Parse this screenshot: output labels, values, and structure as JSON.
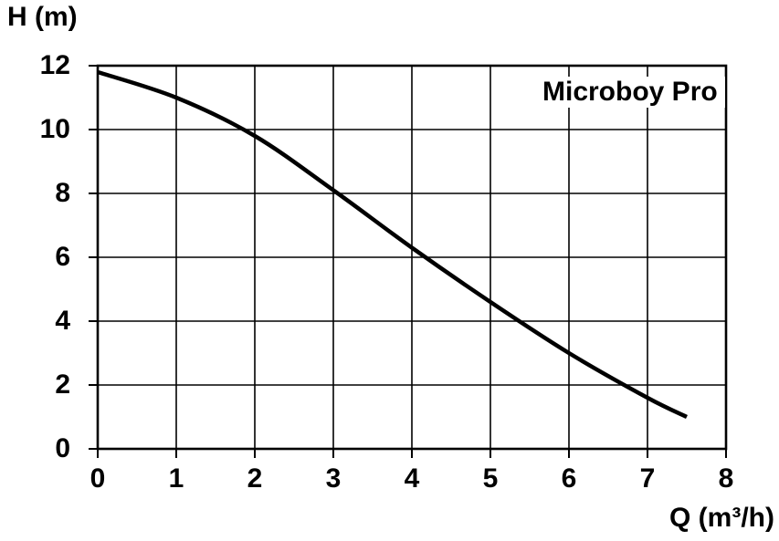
{
  "chart_data": {
    "type": "line",
    "title": "Microboy Pro",
    "xlabel": "Q (m³/h)",
    "ylabel": "H (m)",
    "xlim": [
      0,
      8
    ],
    "ylim": [
      0,
      12
    ],
    "xticks": [
      0,
      1,
      2,
      3,
      4,
      5,
      6,
      7,
      8
    ],
    "yticks": [
      0,
      2,
      4,
      6,
      8,
      10,
      12
    ],
    "grid": true,
    "background": "#ffffff",
    "grid_color": "#000000",
    "axis_color": "#000000",
    "text_color": "#000000",
    "legend_position": "top-right-inside",
    "series": [
      {
        "name": "Microboy Pro",
        "color": "#000000",
        "x": [
          0,
          1,
          2,
          3,
          4,
          5,
          6,
          7,
          7.5
        ],
        "y": [
          11.8,
          11.0,
          9.8,
          8.1,
          6.3,
          4.6,
          3.0,
          1.6,
          1.0
        ]
      }
    ]
  }
}
